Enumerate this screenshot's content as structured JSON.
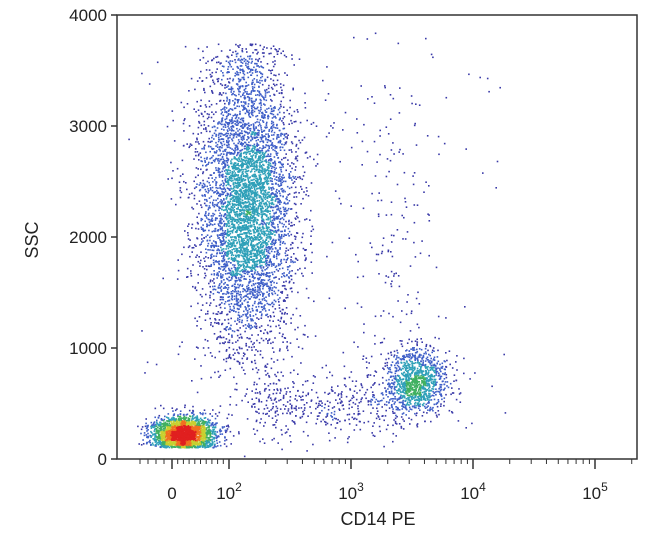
{
  "chart_data": {
    "type": "scatter",
    "subtype": "flow-cytometry density dot plot",
    "xlabel": "CD14 PE",
    "ylabel": "SSC",
    "x_scale": "biexponential",
    "x_ticks": [
      {
        "value": 0,
        "base": "0",
        "exp": ""
      },
      {
        "value": 100,
        "base": "10",
        "exp": "2"
      },
      {
        "value": 1000,
        "base": "10",
        "exp": "3"
      },
      {
        "value": 10000,
        "base": "10",
        "exp": "4"
      },
      {
        "value": 100000,
        "base": "10",
        "exp": "5"
      }
    ],
    "y_scale": "linear",
    "ylim": [
      0,
      4000
    ],
    "y_ticks": [
      0,
      1000,
      2000,
      3000,
      4000
    ],
    "y_tick_labels": [
      "0",
      "1000",
      "2000",
      "3000",
      "4000"
    ],
    "colormap": [
      "#3a3aa8",
      "#3f5fc8",
      "#2fa0b8",
      "#40b060",
      "#c8d030",
      "#f07020",
      "#e02020"
    ],
    "populations": [
      {
        "label": "",
        "x_center": 140,
        "y_center": 2300,
        "events": 5200,
        "x_spread": "0.2 decades",
        "y_spread": 650
      },
      {
        "label": "",
        "x_center": 3500,
        "y_center": 700,
        "events": 1100,
        "x_spread": "0.15 decades",
        "y_spread": 150
      },
      {
        "label": "",
        "x_center": 20,
        "y_center": 230,
        "events": 2400,
        "x_spread": "narrow",
        "y_spread": 80
      }
    ]
  }
}
